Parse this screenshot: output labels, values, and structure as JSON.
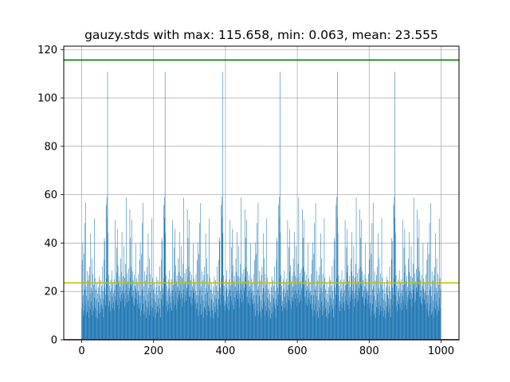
{
  "chart_data": {
    "type": "bar",
    "title": "gauzy.stds with max: 115.658, min: 0.063, mean: 23.555",
    "xlabel": "",
    "ylabel": "",
    "xlim": [
      -50,
      1050
    ],
    "ylim": [
      0,
      121.4
    ],
    "xticks": [
      0,
      200,
      400,
      600,
      800,
      1000
    ],
    "yticks": [
      0,
      20,
      40,
      60,
      80,
      100,
      120
    ],
    "grid": true,
    "bar_color": "#1f77b4",
    "reference_lines": [
      {
        "label": "max",
        "value": 115.658,
        "color": "#008000"
      },
      {
        "label": "mean",
        "value": 23.555,
        "color": "#bfbf00"
      },
      {
        "label": "min",
        "value": 0.063,
        "color": "#ff0000"
      }
    ],
    "series": [
      {
        "x_start": 0,
        "x_step": 1,
        "values": [
          12.8,
          33.1,
          15.2,
          40.2,
          9.8,
          18.4,
          35.5,
          12.1,
          48.3,
          20.7,
          14.9,
          56.6,
          22.1,
          10.4,
          18.2,
          28.4,
          11.7,
          24.5,
          16.3,
          9.1,
          26.8,
          13.5,
          30.2,
          18.9,
          12.6,
          44.0,
          21.4,
          15.8,
          33.7,
          10.2,
          19.6,
          27.3,
          14.1,
          22.8,
          11.9,
          50.2,
          17.4,
          25.6,
          13.2,
          20.9,
          9.5,
          16.7,
          23.4,
          12.3,
          19.1,
          8.7,
          15.6,
          21.8,
          10.9,
          26.2,
          13.8,
          18.5,
          24.7,
          11.4,
          17.2,
          22.3,
          14.6,
          30.4,
          12.9,
          20.1,
          9.3,
          16.8,
          33.2,
          42.1,
          40.8,
          21.6,
          14.3,
          18.7,
          55.8,
          25.4,
          59.1,
          50.6,
          110.8,
          44.2,
          18.3,
          26.7,
          13.9,
          22.4,
          16.1,
          11.8,
          19.7,
          24.9,
          14.7,
          21.2,
          28.6,
          17.9,
          13.1,
          23.8,
          19.4,
          15.3,
          25.1,
          12.2,
          20.6,
          49.5,
          18.1,
          22.7,
          16.4,
          38.2,
          27.9,
          45.9,
          14.5,
          30.8,
          19.8,
          24.2,
          12.7,
          26.5,
          17.6,
          21.9,
          15.9,
          33.6,
          18.8,
          28.1,
          44.5,
          20.3,
          16.9,
          26.4,
          22.9,
          38.7,
          19.2,
          13.6,
          25.7,
          17.1,
          31.4,
          20.8,
          58.8,
          23.1,
          15.4,
          27.6,
          18.6,
          24.1,
          16.2,
          29.3,
          21.5,
          19.9,
          53.9,
          25.9,
          42.2,
          30.1,
          22.5,
          49.7,
          17.7,
          28.3,
          18.0,
          24.6,
          15.1,
          20.4,
          26.9,
          14.2,
          22.2,
          17.3,
          39.8,
          21.1,
          25.3,
          19.5,
          16.6,
          23.6,
          14.8,
          20.2,
          27.2,
          18.4
        ]
      }
    ]
  }
}
